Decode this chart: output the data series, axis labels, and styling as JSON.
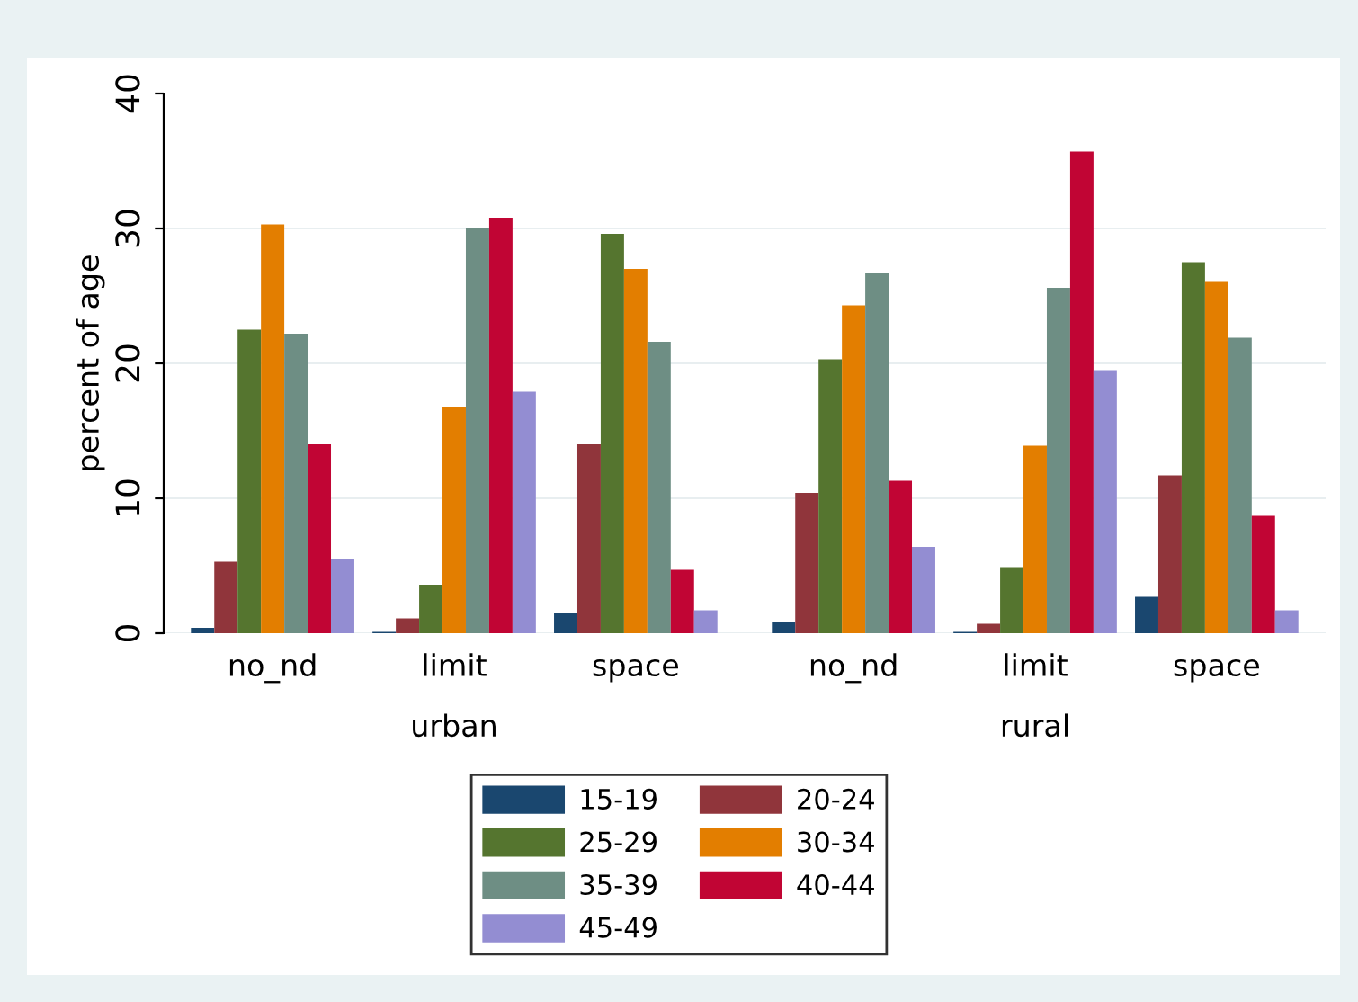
{
  "chart_data": {
    "type": "bar",
    "ylabel": "percent of age",
    "categories": [
      "no_nd",
      "limit",
      "space",
      "no_nd",
      "limit",
      "space"
    ],
    "annotations": [
      "urban",
      "rural"
    ],
    "series": [
      {
        "name": "15-19",
        "color": "#1a476f",
        "values": [
          0.4,
          0.1,
          1.5,
          0.8,
          0.1,
          2.7
        ]
      },
      {
        "name": "20-24",
        "color": "#90353b",
        "values": [
          5.3,
          1.1,
          14,
          10.4,
          0.7,
          11.7
        ]
      },
      {
        "name": "25-29",
        "color": "#55752f",
        "values": [
          22.5,
          3.6,
          29.6,
          20.3,
          4.9,
          27.5
        ]
      },
      {
        "name": "30-34",
        "color": "#e37e00",
        "values": [
          30.3,
          16.8,
          27,
          24.3,
          13.9,
          26.1
        ]
      },
      {
        "name": "35-39",
        "color": "#6e8e84",
        "values": [
          22.2,
          30,
          21.6,
          26.7,
          25.6,
          21.9
        ]
      },
      {
        "name": "40-44",
        "color": "#c10534",
        "values": [
          14,
          30.8,
          4.7,
          11.3,
          35.7,
          8.7
        ]
      },
      {
        "name": "45-49",
        "color": "#938dd2",
        "values": [
          5.5,
          17.9,
          1.7,
          6.4,
          19.5,
          1.7
        ]
      }
    ],
    "ylim": [
      0,
      40
    ],
    "yticks": [
      0,
      10,
      20,
      30,
      40
    ],
    "grid": "y",
    "legend": "bottom"
  }
}
